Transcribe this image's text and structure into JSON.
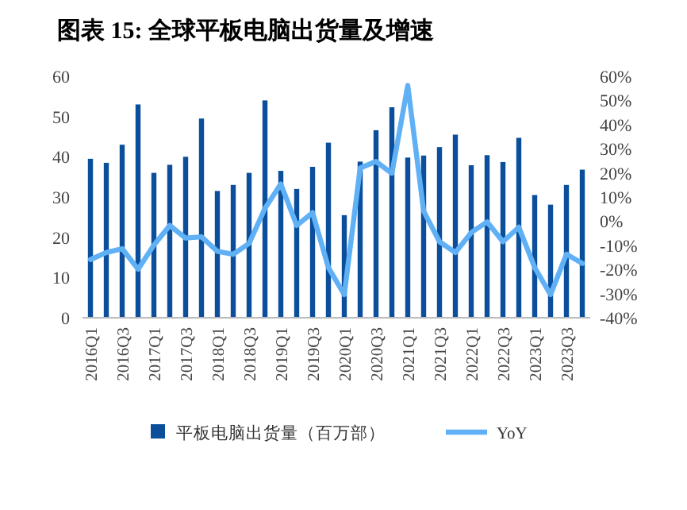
{
  "chart_data": {
    "type": "bar",
    "title": "图表 15:  全球平板电脑出货量及增速",
    "categories": [
      "2016Q1",
      null,
      "2016Q3",
      null,
      "2017Q1",
      null,
      "2017Q3",
      null,
      "2018Q1",
      null,
      "2018Q3",
      null,
      "2019Q1",
      null,
      "2019Q3",
      null,
      "2020Q1",
      null,
      "2020Q3",
      null,
      "2021Q1",
      null,
      "2021Q3",
      null,
      "2022Q1",
      null,
      "2022Q3",
      null,
      "2023Q1",
      null,
      "2023Q3",
      null
    ],
    "series": [
      {
        "name": "平板电脑出货量（百万部）",
        "color": "#0b4f9c",
        "values": [
          39.5,
          38.5,
          43,
          53,
          36,
          38,
          40,
          49.5,
          31.5,
          33,
          36,
          54,
          36.5,
          32,
          37.5,
          43.5,
          25.5,
          38.8,
          46.6,
          52.3,
          39.8,
          40.3,
          42.4,
          45.5,
          37.9,
          40.4,
          38.7,
          44.7,
          30.5,
          28.1,
          33,
          36.8
        ]
      },
      {
        "name": "YoY",
        "type": "line",
        "axis": "y2",
        "color": "#5fb0f5",
        "values": [
          -15.9,
          -13,
          -11.4,
          -19.9,
          -9.9,
          -1.8,
          -7,
          -6.5,
          -12.5,
          -13.7,
          -9.2,
          5.3,
          15.4,
          -1.8,
          3.5,
          -19.2,
          -30.4,
          22,
          24.7,
          19.8,
          56.2,
          4.2,
          -8.5,
          -13,
          -4.7,
          -0.3,
          -8.5,
          -2.5,
          -19.2,
          -30.4,
          -13.7,
          -17.5
        ]
      }
    ],
    "ylim": [
      0,
      60
    ],
    "yticks": [
      0,
      10,
      20,
      30,
      40,
      50,
      60
    ],
    "y2lim": [
      -40,
      60
    ],
    "y2ticks": [
      {
        "value": -40,
        "label": "-40%"
      },
      {
        "value": -30,
        "label": "-30%"
      },
      {
        "value": -20,
        "label": "-20%"
      },
      {
        "value": -10,
        "label": "-10%"
      },
      {
        "value": 0,
        "label": "0%"
      },
      {
        "value": 10,
        "label": "10%"
      },
      {
        "value": 20,
        "label": "20%"
      },
      {
        "value": 30,
        "label": "30%"
      },
      {
        "value": 40,
        "label": "40%"
      },
      {
        "value": 50,
        "label": "50%"
      },
      {
        "value": 60,
        "label": "60%"
      }
    ],
    "grid": false,
    "legend": "bottom",
    "line_style": "solid",
    "marker": "none"
  }
}
